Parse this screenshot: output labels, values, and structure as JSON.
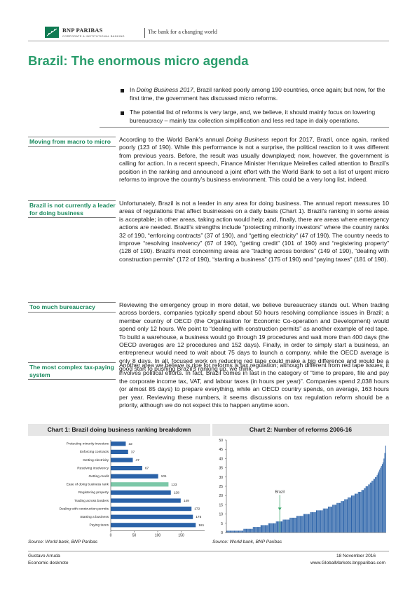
{
  "header": {
    "brand": "BNP PARIBAS",
    "brand_sub": "CORPORATE & INSTITUTIONAL BANKING",
    "tagline": "The bank for a changing world"
  },
  "title": "Brazil: The enormous micro agenda",
  "bullets": [
    {
      "pre": "In ",
      "italic": "Doing Business 2017",
      "post": ", Brazil ranked poorly among 190 countries, once again; but now, for the first time, the government has discussed micro reforms."
    },
    {
      "pre": "",
      "italic": "",
      "post": "The potential list of reforms is very large, and, we believe, it should mainly focus on lowering bureaucracy – mainly tax collection simplification and less red tape in daily operations."
    }
  ],
  "sections": [
    {
      "heading": "Moving from macro to micro",
      "pre": "According to the World Bank’s annual ",
      "italic": "Doing Business",
      "post": " report for 2017, Brazil, once again, ranked poorly (123 of 190). While this performance is not a surprise, the political reaction to it was different from previous years. Before, the result was usually downplayed; now, however, the government is calling for action. In a recent speech, Finance Minister Henrique Meirelles called attention to Brazil’s position in the ranking and announced a joint effort with the World Bank to set a list of urgent micro reforms to improve the country’s business environment. This could be a very long list, indeed."
    },
    {
      "heading": "Brazil is not currently a leader for doing business",
      "pre": "",
      "italic": "",
      "post": "Unfortunately, Brazil is not a leader in any area for doing business. The annual report measures 10 areas of regulations that affect businesses on a daily basis (Chart 1). Brazil’s ranking in some areas is acceptable; in other areas, taking action would help; and, finally, there are areas where emergency actions are needed. Brazil’s strengths include “protecting minority investors” where the country ranks 32 of 190, “enforcing contracts” (37 of 190), and “getting electricity” (47 of 190). The country needs to improve “resolving insolvency” (67 of 190), “getting credit” (101 of 190) and “registering property” (128 of 190). Brazil’s most concerning areas are “trading across borders” (149 of 190), “dealing with construction permits” (172 of 190), “starting a business” (175 of 190) and “paying taxes” (181 of 190)."
    },
    {
      "heading": "Too much bureaucracy",
      "pre": "",
      "italic": "",
      "post": "Reviewing the emergency group in more detail, we believe bureaucracy stands out. When trading across borders, companies typically spend about 50 hours resolving compliance issues in Brazil; a member country of OECD (the Organisation for Economic Co-operation and Development) would spend only 12 hours. We point to “dealing with construction permits” as another example of red tape. To build a warehouse, a business would go through 19 procedures and wait more than 400 days (the OECD averages are 12 procedures and 152 days). Finally, in order to simply start a business, an entrepreneur would need to wait about 75 days to launch a company, while the OECD average is only 8 days. In all, focused work on reducing red tape could make a big difference and would be a good start to pushing Brazil’s ranking up, we think."
    },
    {
      "heading": "The most complex tax-paying system",
      "pre": "",
      "italic": "",
      "post": "Another area we believe is ripe for reforms is tax regulation; although different from red tape issues, it involves political efforts. In fact, Brazil comes in last in the category of “time to prepare, file and pay the corporate income tax, VAT, and labour taxes (in hours per year)”. Companies spend 2,038 hours (or almost 85 days) to prepare everything, while an OECD country spends, on average, 163 hours per year. Reviewing these numbers, it seems discussions on tax regulation reform should be a priority, although we do not expect this to happen anytime soon."
    }
  ],
  "chart1": {
    "title": "Chart 1: Brazil doing business ranking breakdown",
    "source": "Source: World bank, BNP Paribas"
  },
  "chart2": {
    "title": "Chart 2: Number of reforms 2006-16",
    "source": "Source: World bank, BNP Paribas",
    "annotation": "Brazil"
  },
  "chart_data": [
    {
      "type": "bar",
      "orientation": "horizontal",
      "title": "Chart 1: Brazil doing business ranking breakdown",
      "categories": [
        "Protecting minority investors",
        "Enforcing contracts",
        "Getting electricity",
        "Resolving insolvency",
        "Getting credit",
        "Ease of doing business rank",
        "Registering property",
        "Trading across borders",
        "Dealing with construction permits",
        "Starting a business",
        "Paying taxes"
      ],
      "values": [
        32,
        37,
        47,
        67,
        101,
        123,
        128,
        149,
        172,
        175,
        181
      ],
      "highlight_index": 5,
      "bar_color": "#2a62a8",
      "highlight_color": "#7cc8a8",
      "xlim": [
        0,
        200
      ],
      "xticks": [
        0,
        50,
        100,
        150
      ],
      "data_labels": true,
      "grid": false
    },
    {
      "type": "bar",
      "title": "Chart 2: Number of reforms 2006-16",
      "ylim": [
        0,
        50
      ],
      "yticks": [
        0,
        5,
        10,
        15,
        20,
        25,
        30,
        35,
        40,
        45,
        50
      ],
      "bar_color": "#2a62a8",
      "values": [
        1,
        1,
        1,
        1,
        1,
        1,
        1,
        1,
        1,
        1,
        1,
        1,
        1,
        1,
        1,
        1,
        1,
        1,
        1,
        1,
        2,
        2,
        2,
        2,
        2,
        2,
        2,
        2,
        2,
        2,
        2,
        3,
        3,
        3,
        3,
        3,
        3,
        3,
        3,
        3,
        4,
        4,
        4,
        4,
        4,
        4,
        4,
        4,
        4,
        5,
        5,
        5,
        5,
        5,
        5,
        5,
        5,
        5,
        6,
        6,
        6,
        6,
        6,
        6,
        6,
        6,
        7,
        7,
        7,
        7,
        7,
        7,
        7,
        7,
        8,
        8,
        8,
        8,
        8,
        8,
        8,
        8,
        9,
        9,
        9,
        9,
        9,
        9,
        9,
        9,
        10,
        10,
        10,
        10,
        10,
        10,
        10,
        10,
        11,
        11,
        11,
        11,
        11,
        11,
        11,
        12,
        12,
        12,
        12,
        12,
        12,
        12,
        12,
        13,
        13,
        13,
        13,
        13,
        13,
        14,
        14,
        14,
        14,
        14,
        15,
        15,
        15,
        15,
        15,
        16,
        16,
        16,
        16,
        16,
        17,
        17,
        17,
        17,
        18,
        18,
        18,
        18,
        19,
        19,
        19,
        19,
        20,
        20,
        20,
        20,
        21,
        21,
        21,
        21,
        22,
        22,
        22,
        22,
        23,
        23,
        23,
        24,
        24,
        25,
        25,
        25,
        26,
        26,
        27,
        27,
        28,
        28,
        29,
        29,
        30,
        30,
        31,
        32,
        33,
        34,
        35,
        36,
        37,
        38,
        40,
        43,
        47
      ],
      "annotation": {
        "label": "Brazil",
        "index": 62,
        "value": 12
      },
      "grid": false
    }
  ],
  "footer": {
    "author": "Gustavo Arruda",
    "team": "Economic desknote",
    "date": "18 November 2016",
    "site": "www.GlobalMarkets.bnpparibas.com"
  },
  "colors": {
    "accent_green": "#2a9d6c",
    "bar_blue": "#2a62a8",
    "highlight_green": "#7cc8a8",
    "annotation_green": "#3aa86a"
  }
}
